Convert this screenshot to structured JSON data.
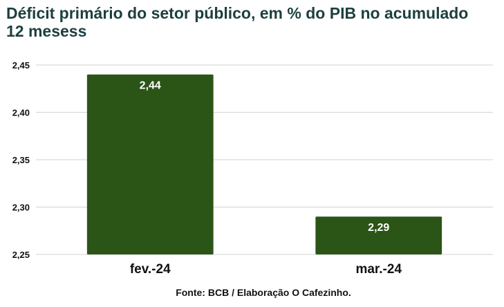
{
  "title": "Déficit primário do setor público, em % do PIB no acumulado 12 mesess",
  "source": "Fonte: BCB / Elaboração O Cafezinho.",
  "colors": {
    "bar": "#2b5417",
    "grid": "#d9d9d9",
    "title": "#1d3f3f",
    "bar_label": "#ffffff"
  },
  "chart_data": {
    "type": "bar",
    "title": "Déficit primário do setor público, em % do PIB no acumulado 12 mesess",
    "categories": [
      "fev.-24",
      "mar.-24"
    ],
    "values": [
      2.44,
      2.29
    ],
    "value_labels": [
      "2,44",
      "2,29"
    ],
    "xlabel": "",
    "ylabel": "",
    "ylim": [
      2.25,
      2.45
    ],
    "yticks": [
      2.25,
      2.3,
      2.35,
      2.4,
      2.45
    ],
    "ytick_labels": [
      "2,25",
      "2,30",
      "2,35",
      "2,40",
      "2,45"
    ],
    "grid": true,
    "legend": "none",
    "data_labels": "inside-top"
  }
}
